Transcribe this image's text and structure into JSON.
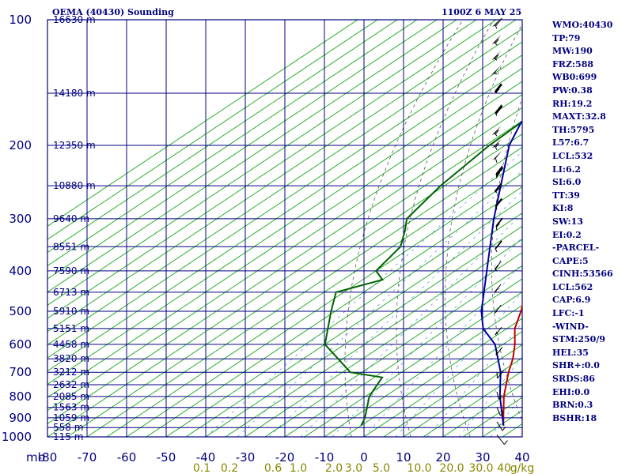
{
  "header": {
    "station": "OEMA (40430) Sounding",
    "valid_time": "1100Z  6 MAY 25"
  },
  "stats": [
    "WMO:40430",
    "TP:79",
    "MW:190",
    "FRZ:588",
    "WB0:699",
    "PW:0.38",
    "RH:19.2",
    "MAXT:32.8",
    "TH:5795",
    "L57:6.7",
    "LCL:532",
    "LI:6.2",
    "SI:6.0",
    "TT:39",
    "KI:8",
    "SW:13",
    "EI:0.2",
    "-PARCEL-",
    "CAPE:5",
    "CINH:53566",
    "LCL:562",
    "CAP:6.9",
    "LFC:-1",
    "-WIND-",
    "STM:250/9",
    "HEL:35",
    "SHR+:0.0",
    "SRDS:86",
    "EHI:0.0",
    "BRN:0.3",
    "BSHR:18"
  ],
  "chart_data": {
    "type": "line",
    "chart_kind": "skew-T log-p sounding",
    "x_unit_label": "mb",
    "y_axis": {
      "type": "log",
      "range": [
        1000,
        100
      ],
      "unit": "mb"
    },
    "x_axis": {
      "range": [
        -80,
        40
      ],
      "unit": "°C",
      "skewed": true
    },
    "pressure_ticks": [
      100,
      200,
      300,
      400,
      500,
      600,
      700,
      800,
      900,
      1000
    ],
    "temperature_ticks": [
      -80,
      -70,
      -60,
      -50,
      -40,
      -30,
      -20,
      -10,
      0,
      10,
      20,
      30,
      40
    ],
    "mixing_ratio_ticks": [
      "0.1",
      "0.2",
      "0.6",
      "1.0",
      "2.0",
      "3.0",
      "5.0",
      "10.0",
      "20.0",
      "30.0",
      "40",
      "g/kg"
    ],
    "height_labels": [
      {
        "p": 100,
        "label": "16630 m"
      },
      {
        "p": 150,
        "label": "14180 m"
      },
      {
        "p": 200,
        "label": "12350 m"
      },
      {
        "p": 250,
        "label": "10880 m"
      },
      {
        "p": 300,
        "label": "9640 m"
      },
      {
        "p": 350,
        "label": "8551 m"
      },
      {
        "p": 400,
        "label": "7590 m"
      },
      {
        "p": 450,
        "label": "6713 m"
      },
      {
        "p": 500,
        "label": "5910 m"
      },
      {
        "p": 550,
        "label": "5151 m"
      },
      {
        "p": 600,
        "label": "4458 m"
      },
      {
        "p": 650,
        "label": "3820 m"
      },
      {
        "p": 700,
        "label": "3212 m"
      },
      {
        "p": 750,
        "label": "2632 m"
      },
      {
        "p": 800,
        "label": "2085 m"
      },
      {
        "p": 850,
        "label": "1563 m"
      },
      {
        "p": 900,
        "label": "1059 m"
      },
      {
        "p": 950,
        "label": "558 m"
      },
      {
        "p": 1000,
        "label": "115 m"
      }
    ],
    "series": [
      {
        "key": "temperature",
        "color": "#c00000",
        "points": [
          {
            "p": 100,
            "t": -74
          },
          {
            "p": 110,
            "t": -71
          },
          {
            "p": 125,
            "t": -62
          },
          {
            "p": 135,
            "t": -60
          },
          {
            "p": 150,
            "t": -58
          },
          {
            "p": 200,
            "t": -54
          },
          {
            "p": 250,
            "t": -46
          },
          {
            "p": 300,
            "t": -37
          },
          {
            "p": 350,
            "t": -28
          },
          {
            "p": 400,
            "t": -21
          },
          {
            "p": 450,
            "t": -14
          },
          {
            "p": 500,
            "t": -8
          },
          {
            "p": 550,
            "t": -3
          },
          {
            "p": 600,
            "t": 3
          },
          {
            "p": 650,
            "t": 8
          },
          {
            "p": 700,
            "t": 12
          },
          {
            "p": 800,
            "t": 20
          },
          {
            "p": 900,
            "t": 28
          },
          {
            "p": 940,
            "t": 31
          }
        ]
      },
      {
        "key": "dewpoint",
        "color": "#006400",
        "points": [
          {
            "p": 165,
            "t": -80
          },
          {
            "p": 200,
            "t": -79
          },
          {
            "p": 250,
            "t": -76
          },
          {
            "p": 300,
            "t": -72
          },
          {
            "p": 320,
            "t": -68
          },
          {
            "p": 350,
            "t": -63
          },
          {
            "p": 400,
            "t": -60
          },
          {
            "p": 420,
            "t": -55
          },
          {
            "p": 450,
            "t": -62
          },
          {
            "p": 500,
            "t": -56
          },
          {
            "p": 600,
            "t": -45
          },
          {
            "p": 700,
            "t": -28
          },
          {
            "p": 720,
            "t": -18
          },
          {
            "p": 800,
            "t": -14
          },
          {
            "p": 900,
            "t": -7
          },
          {
            "p": 940,
            "t": -5
          }
        ]
      },
      {
        "key": "parcel",
        "color": "#0000a0",
        "points": [
          {
            "p": 175,
            "t": -80
          },
          {
            "p": 200,
            "t": -74
          },
          {
            "p": 300,
            "t": -50
          },
          {
            "p": 400,
            "t": -32
          },
          {
            "p": 500,
            "t": -18
          },
          {
            "p": 550,
            "t": -11
          },
          {
            "p": 600,
            "t": -2
          },
          {
            "p": 700,
            "t": 10
          },
          {
            "p": 800,
            "t": 19
          },
          {
            "p": 940,
            "t": 31
          }
        ]
      }
    ],
    "wind_barbs": [
      {
        "p": 105,
        "dir": 250,
        "spd": 60
      },
      {
        "p": 115,
        "dir": 255,
        "spd": 55
      },
      {
        "p": 125,
        "dir": 260,
        "spd": 55
      },
      {
        "p": 135,
        "dir": 265,
        "spd": 50
      },
      {
        "p": 150,
        "dir": 260,
        "spd": 45
      },
      {
        "p": 170,
        "dir": 250,
        "spd": 40
      },
      {
        "p": 190,
        "dir": 255,
        "spd": 55
      },
      {
        "p": 205,
        "dir": 250,
        "spd": 55
      },
      {
        "p": 220,
        "dir": 245,
        "spd": 50
      },
      {
        "p": 240,
        "dir": 240,
        "spd": 45
      },
      {
        "p": 260,
        "dir": 260,
        "spd": 35
      },
      {
        "p": 285,
        "dir": 250,
        "spd": 30
      },
      {
        "p": 320,
        "dir": 240,
        "spd": 25
      },
      {
        "p": 360,
        "dir": 250,
        "spd": 20
      },
      {
        "p": 400,
        "dir": 260,
        "spd": 15
      },
      {
        "p": 450,
        "dir": 270,
        "spd": 15
      },
      {
        "p": 500,
        "dir": 280,
        "spd": 10
      },
      {
        "p": 560,
        "dir": 290,
        "spd": 10
      },
      {
        "p": 620,
        "dir": 300,
        "spd": 10
      },
      {
        "p": 700,
        "dir": 310,
        "spd": 10
      },
      {
        "p": 780,
        "dir": 320,
        "spd": 5
      },
      {
        "p": 850,
        "dir": 330,
        "spd": 5
      },
      {
        "p": 920,
        "dir": 340,
        "spd": 5
      },
      {
        "p": 990,
        "dir": 350,
        "spd": 5
      }
    ],
    "colors": {
      "grid": "#000080",
      "isotherm": "#00a000",
      "dry_adiabat": "#404040",
      "moist_adiabat": "#4a8ad4",
      "mixing_label": "#888800"
    }
  }
}
